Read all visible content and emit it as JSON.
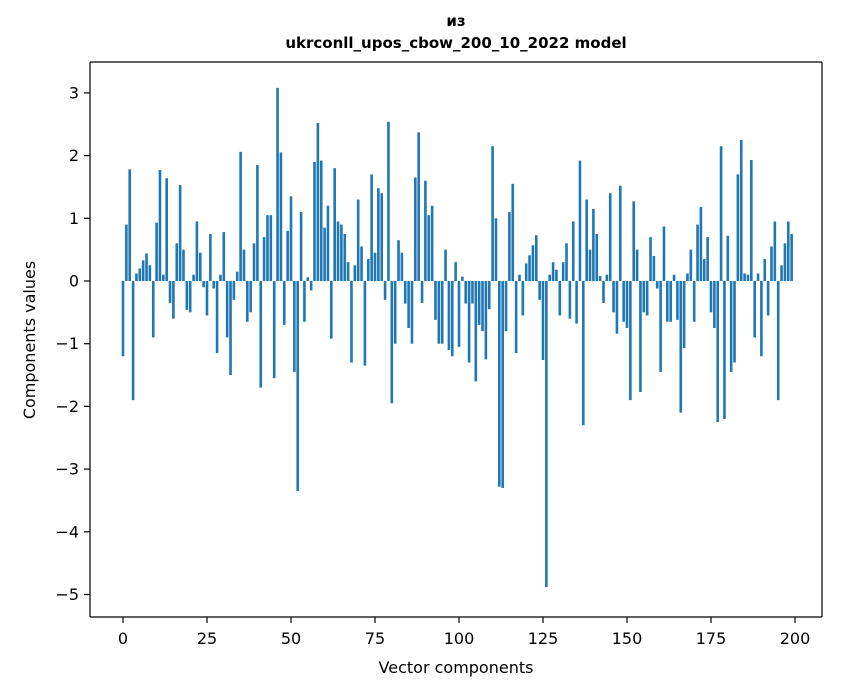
{
  "figure": {
    "title_line1": "из",
    "title_line2": "ukrconll_upos_cbow_200_10_2022 model",
    "xlabel": "Vector components",
    "ylabel": "Components values"
  },
  "chart_data": {
    "type": "bar",
    "title": "из / ukrconll_upos_cbow_200_10_2022 model",
    "xlabel": "Vector components",
    "ylabel": "Components values",
    "legend": "none",
    "grid": false,
    "bar_color": "#1f77b4",
    "x_ticks": [
      0,
      25,
      50,
      75,
      100,
      125,
      150,
      175,
      200
    ],
    "y_ticks": [
      3,
      2,
      1,
      0,
      -1,
      -2,
      -3,
      -4,
      -5
    ],
    "xlim": [
      -10,
      208
    ],
    "ylim": [
      -5.36,
      3.49
    ],
    "x_values_are_indices": true,
    "n_components": 200,
    "values": [
      -1.2,
      0.9,
      1.78,
      -1.9,
      0.12,
      0.2,
      0.33,
      0.44,
      0.25,
      -0.9,
      0.93,
      1.77,
      0.1,
      1.64,
      -0.35,
      -0.6,
      0.6,
      1.53,
      0.5,
      -0.46,
      -0.5,
      0.1,
      0.95,
      0.45,
      -0.1,
      -0.55,
      0.75,
      -0.12,
      -1.15,
      0.1,
      0.78,
      -0.9,
      -1.5,
      -0.3,
      0.15,
      2.06,
      0.5,
      -0.65,
      -0.5,
      0.6,
      1.85,
      -1.7,
      0.7,
      1.05,
      1.05,
      -1.55,
      3.08,
      2.05,
      -0.7,
      0.8,
      1.35,
      -1.45,
      -3.35,
      1.1,
      -0.65,
      0.06,
      -0.15,
      1.9,
      2.52,
      1.92,
      0.85,
      1.2,
      -0.92,
      1.8,
      0.95,
      0.9,
      0.75,
      0.3,
      -1.3,
      0.25,
      1.3,
      0.55,
      -1.35,
      0.35,
      1.7,
      0.45,
      1.48,
      1.4,
      -0.3,
      2.54,
      -1.95,
      -1.0,
      0.65,
      0.45,
      -0.36,
      -0.75,
      -1.0,
      1.65,
      2.37,
      -0.35,
      1.6,
      1.05,
      1.2,
      -0.62,
      -1.0,
      -1.0,
      0.5,
      -1.1,
      -1.2,
      0.3,
      -1.05,
      0.07,
      -0.36,
      -1.3,
      -0.36,
      -1.6,
      -0.7,
      -0.8,
      -1.25,
      -0.45,
      2.15,
      1.0,
      -3.28,
      -3.3,
      -0.8,
      1.1,
      1.55,
      -1.15,
      0.1,
      -0.55,
      0.28,
      0.41,
      0.57,
      0.73,
      -0.3,
      -1.26,
      -4.88,
      0.1,
      0.3,
      0.18,
      -0.55,
      0.3,
      0.6,
      -0.6,
      0.95,
      -0.68,
      1.92,
      -2.3,
      1.3,
      0.5,
      1.15,
      0.75,
      0.08,
      -0.35,
      0.1,
      1.4,
      -0.5,
      -0.84,
      1.52,
      -0.65,
      -0.75,
      -1.9,
      1.27,
      0.5,
      -1.77,
      -0.5,
      -0.55,
      0.7,
      0.4,
      -0.12,
      -1.45,
      0.87,
      -0.65,
      -0.65,
      0.1,
      -0.62,
      -2.1,
      -1.07,
      0.12,
      0.5,
      -0.65,
      0.9,
      1.18,
      0.35,
      0.7,
      -0.5,
      -0.75,
      -2.25,
      2.15,
      -2.2,
      0.72,
      -1.45,
      -1.3,
      1.7,
      2.25,
      0.12,
      0.1,
      1.93,
      -0.9,
      0.12,
      -1.2,
      0.35,
      -0.55,
      0.55,
      0.95,
      -1.9,
      0.25,
      0.6,
      0.95,
      0.75
    ]
  }
}
